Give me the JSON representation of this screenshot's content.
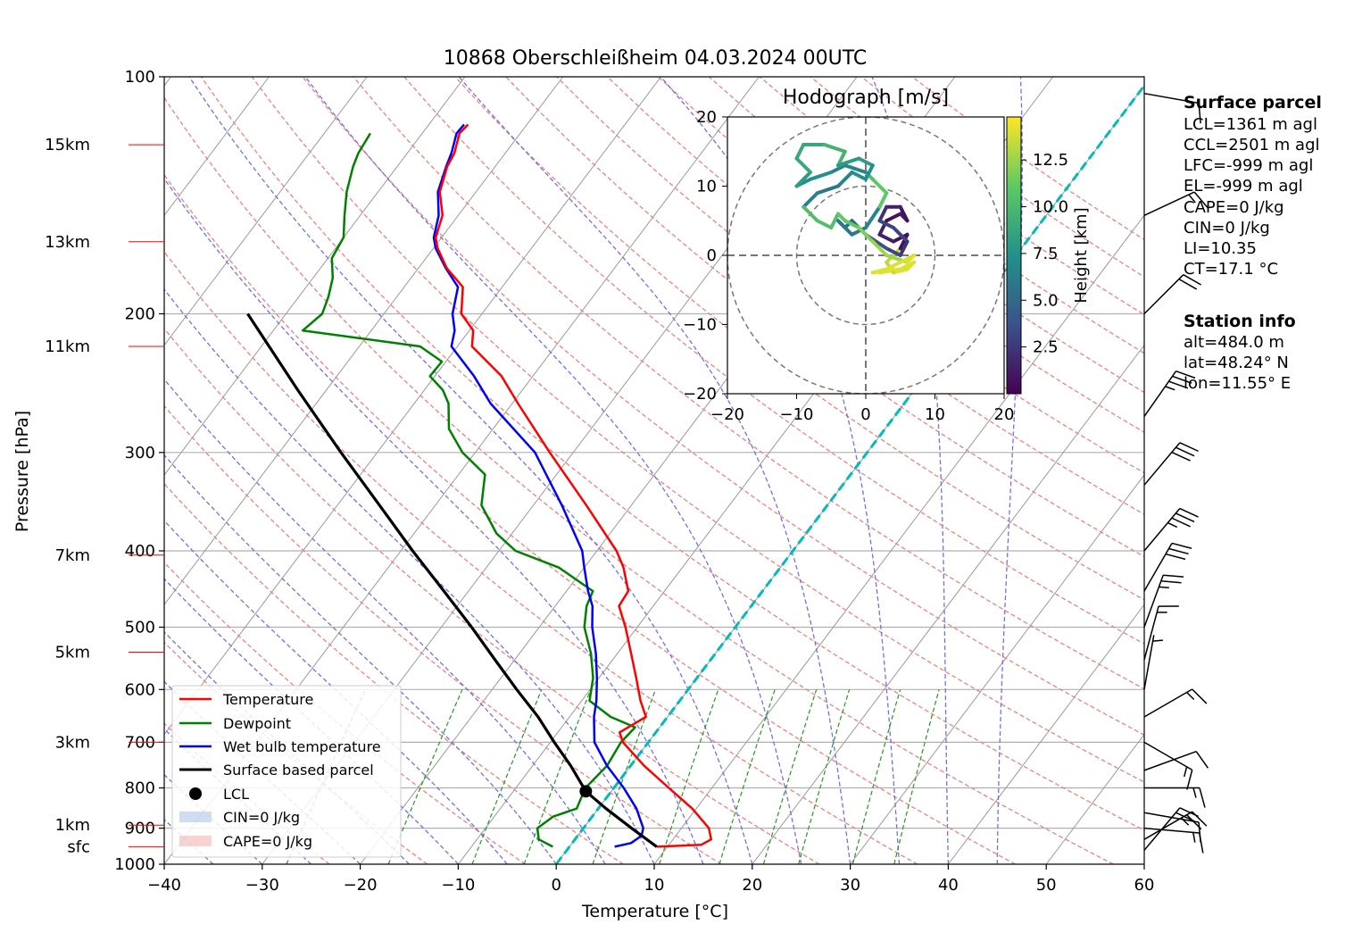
{
  "title": "10868 Oberschleißheim 04.03.2024 00UTC",
  "chart_data": {
    "type": "skew-t",
    "x_axis": {
      "label": "Temperature [°C]",
      "range": [
        -40,
        60
      ],
      "ticks": [
        -40,
        -30,
        -20,
        -10,
        0,
        10,
        20,
        30,
        40,
        50,
        60
      ],
      "tick_labels": [
        "−40",
        "−30",
        "−20",
        "−10",
        "0",
        "10",
        "20",
        "30",
        "40",
        "50",
        "60"
      ]
    },
    "y_axis": {
      "label": "Pressure [hPa]",
      "scale": "log",
      "range": [
        1000,
        100
      ],
      "ticks": [
        1000,
        900,
        800,
        700,
        600,
        500,
        400,
        300,
        200,
        100
      ],
      "tick_labels": [
        "1000",
        "900",
        "800",
        "700",
        "600",
        "500",
        "400",
        "300",
        "200",
        "100"
      ]
    },
    "height_marks": [
      {
        "label": "sfc",
        "pressure": 950
      },
      {
        "label": "1km",
        "pressure": 892
      },
      {
        "label": "3km",
        "pressure": 700
      },
      {
        "label": "5km",
        "pressure": 538
      },
      {
        "label": "7km",
        "pressure": 405
      },
      {
        "label": "11km",
        "pressure": 220
      },
      {
        "label": "13km",
        "pressure": 162
      },
      {
        "label": "15km",
        "pressure": 122
      }
    ],
    "series": [
      {
        "name": "Temperature",
        "color": "#ff0000",
        "points": [
          [
            950,
            8.9
          ],
          [
            945,
            13.3
          ],
          [
            930,
            13.9
          ],
          [
            900,
            12.8
          ],
          [
            850,
            9.6
          ],
          [
            800,
            5.6
          ],
          [
            750,
            1.4
          ],
          [
            700,
            -2.6
          ],
          [
            680,
            -3.7
          ],
          [
            650,
            -2.2
          ],
          [
            620,
            -4.0
          ],
          [
            580,
            -6.2
          ],
          [
            540,
            -8.6
          ],
          [
            500,
            -11.2
          ],
          [
            470,
            -13.5
          ],
          [
            450,
            -13.7
          ],
          [
            420,
            -16.0
          ],
          [
            400,
            -18.0
          ],
          [
            350,
            -24.6
          ],
          [
            300,
            -32.4
          ],
          [
            260,
            -39.4
          ],
          [
            240,
            -43.2
          ],
          [
            220,
            -48.5
          ],
          [
            210,
            -49.6
          ],
          [
            200,
            -52.1
          ],
          [
            185,
            -54.0
          ],
          [
            175,
            -57.1
          ],
          [
            165,
            -59.6
          ],
          [
            160,
            -60.6
          ],
          [
            150,
            -61.6
          ],
          [
            140,
            -63.7
          ],
          [
            130,
            -64.9
          ],
          [
            125,
            -65.2
          ],
          [
            118,
            -66.2
          ],
          [
            115,
            -66.0
          ]
        ]
      },
      {
        "name": "Wet bulb temperature",
        "color": "#0000ff",
        "points": [
          [
            950,
            4.6
          ],
          [
            940,
            6.0
          ],
          [
            920,
            6.5
          ],
          [
            900,
            6.1
          ],
          [
            850,
            3.9
          ],
          [
            800,
            1.0
          ],
          [
            750,
            -2.4
          ],
          [
            700,
            -5.5
          ],
          [
            650,
            -7.5
          ],
          [
            620,
            -8.5
          ],
          [
            580,
            -10.2
          ],
          [
            540,
            -12.2
          ],
          [
            500,
            -14.6
          ],
          [
            470,
            -16.2
          ],
          [
            450,
            -17.8
          ],
          [
            420,
            -20.0
          ],
          [
            400,
            -21.5
          ],
          [
            350,
            -27.1
          ],
          [
            300,
            -33.9
          ],
          [
            260,
            -42.2
          ],
          [
            240,
            -46.0
          ],
          [
            220,
            -50.6
          ],
          [
            210,
            -51.5
          ],
          [
            200,
            -53.0
          ],
          [
            185,
            -54.5
          ],
          [
            175,
            -57.2
          ],
          [
            165,
            -59.8
          ],
          [
            160,
            -60.8
          ],
          [
            150,
            -62.0
          ],
          [
            140,
            -63.9
          ],
          [
            130,
            -65.0
          ],
          [
            125,
            -65.5
          ],
          [
            118,
            -66.5
          ],
          [
            115,
            -66.4
          ]
        ]
      },
      {
        "name": "Dewpoint",
        "color": "#008000",
        "points": [
          [
            950,
            -1.7
          ],
          [
            930,
            -3.7
          ],
          [
            900,
            -4.7
          ],
          [
            870,
            -4.0
          ],
          [
            850,
            -2.2
          ],
          [
            800,
            -2.9
          ],
          [
            750,
            -2.4
          ],
          [
            700,
            -2.8
          ],
          [
            670,
            -2.5
          ],
          [
            650,
            -5.8
          ],
          [
            620,
            -9.2
          ],
          [
            580,
            -10.6
          ],
          [
            540,
            -12.7
          ],
          [
            500,
            -15.4
          ],
          [
            470,
            -16.8
          ],
          [
            450,
            -17.3
          ],
          [
            420,
            -22.6
          ],
          [
            400,
            -28.3
          ],
          [
            380,
            -31.6
          ],
          [
            350,
            -35.3
          ],
          [
            320,
            -37.3
          ],
          [
            300,
            -41.3
          ],
          [
            280,
            -44.5
          ],
          [
            260,
            -46.5
          ],
          [
            250,
            -48.1
          ],
          [
            240,
            -50.5
          ],
          [
            230,
            -50.4
          ],
          [
            220,
            -53.8
          ],
          [
            210,
            -67.0
          ],
          [
            200,
            -66.3
          ],
          [
            190,
            -67.0
          ],
          [
            180,
            -68.0
          ],
          [
            170,
            -69.6
          ],
          [
            160,
            -70.0
          ],
          [
            150,
            -71.6
          ],
          [
            140,
            -73.2
          ],
          [
            130,
            -74.5
          ],
          [
            125,
            -75.0
          ],
          [
            118,
            -75.3
          ]
        ]
      },
      {
        "name": "Surface based parcel",
        "color": "#000000",
        "points": [
          [
            950,
            8.9
          ],
          [
            900,
            4.9
          ],
          [
            850,
            0.8
          ],
          [
            808,
            -2.6
          ],
          [
            750,
            -6.1
          ],
          [
            700,
            -9.6
          ],
          [
            650,
            -13.2
          ],
          [
            600,
            -17.5
          ],
          [
            550,
            -22.0
          ],
          [
            500,
            -26.9
          ],
          [
            450,
            -32.5
          ],
          [
            400,
            -38.8
          ],
          [
            350,
            -45.7
          ],
          [
            300,
            -53.7
          ],
          [
            250,
            -62.9
          ],
          [
            200,
            -73.9
          ]
        ]
      }
    ],
    "lcl": {
      "pressure": 808,
      "temperature": -2.6
    },
    "legend": [
      "Temperature",
      "Dewpoint",
      "Wet bulb temperature",
      "Surface based parcel",
      "LCL",
      "CIN=0 J/kg",
      "CAPE=0 J/kg"
    ],
    "legend_position": "lower-left",
    "hodograph": {
      "title": "Hodograph [m/s]",
      "range": [
        -20,
        20
      ],
      "ticks": [
        -20,
        -10,
        0,
        10,
        20
      ],
      "tick_labels": [
        "−20",
        "−10",
        "0",
        "10",
        "20"
      ],
      "rings": [
        10,
        20
      ],
      "colorbar_label": "Height [km]",
      "colorbar_ticks": [
        "2.5",
        "5.0",
        "7.5",
        "10.0",
        "12.5"
      ],
      "colormap": "viridis",
      "uv": [
        [
          2,
          -2.5
        ],
        [
          5,
          -2
        ],
        [
          7,
          -1
        ],
        [
          6,
          -2
        ],
        [
          4,
          -2.5
        ],
        [
          3,
          -1
        ],
        [
          5,
          1
        ],
        [
          6,
          3
        ],
        [
          4,
          2
        ],
        [
          2,
          3
        ],
        [
          3,
          5
        ],
        [
          5,
          6
        ],
        [
          6,
          5
        ],
        [
          5,
          7
        ],
        [
          3,
          7
        ],
        [
          2,
          5
        ],
        [
          4,
          4
        ],
        [
          6,
          2
        ],
        [
          5,
          0
        ],
        [
          3,
          1
        ],
        [
          0,
          3
        ],
        [
          -2,
          5
        ],
        [
          -3,
          4
        ],
        [
          -4,
          5
        ],
        [
          -2,
          3
        ],
        [
          0,
          4
        ],
        [
          2,
          7
        ],
        [
          3,
          9
        ],
        [
          1,
          11
        ],
        [
          0,
          12
        ],
        [
          -3,
          13
        ],
        [
          -5,
          12
        ],
        [
          -8,
          11
        ],
        [
          -10,
          10
        ],
        [
          -8,
          12
        ],
        [
          -10,
          14
        ],
        [
          -9,
          16
        ],
        [
          -6,
          16
        ],
        [
          -3,
          15
        ],
        [
          -4,
          13
        ],
        [
          -1,
          14
        ],
        [
          1,
          13
        ],
        [
          0,
          11
        ],
        [
          -2,
          12
        ],
        [
          -4,
          10
        ],
        [
          -7,
          9
        ],
        [
          -9,
          7
        ],
        [
          -7,
          5
        ],
        [
          -5,
          4
        ],
        [
          -4,
          6
        ],
        [
          -3,
          5
        ],
        [
          -1,
          4
        ],
        [
          1,
          2
        ],
        [
          3,
          0
        ],
        [
          6,
          -1
        ],
        [
          7,
          0
        ],
        [
          5,
          -1
        ],
        [
          3,
          -2
        ],
        [
          1,
          -2.5
        ],
        [
          4,
          -2
        ]
      ]
    },
    "parcel_info_title": "Surface parcel",
    "parcel_info": [
      "LCL=1361 m agl",
      "CCL=2501 m agl",
      "LFC=-999 m agl",
      "EL=-999 m agl",
      "CAPE=0 J/kg",
      "CIN=0 J/kg",
      "LI=10.35",
      "CT=17.1 °C"
    ],
    "station_info_title": "Station info",
    "station_info": [
      "alt=484.0 m",
      "lat=48.24° N",
      "lon=11.55° E"
    ],
    "wind_barbs": [
      {
        "pressure": 960,
        "speed_kt": 20,
        "dir": 220
      },
      {
        "pressure": 930,
        "speed_kt": 25,
        "dir": 240
      },
      {
        "pressure": 900,
        "speed_kt": 15,
        "dir": 275
      },
      {
        "pressure": 860,
        "speed_kt": 10,
        "dir": 280
      },
      {
        "pressure": 800,
        "speed_kt": 15,
        "dir": 270
      },
      {
        "pressure": 760,
        "speed_kt": 10,
        "dir": 250
      },
      {
        "pressure": 700,
        "speed_kt": 15,
        "dir": 300
      },
      {
        "pressure": 650,
        "speed_kt": 15,
        "dir": 240
      },
      {
        "pressure": 600,
        "speed_kt": 5,
        "dir": 190
      },
      {
        "pressure": 550,
        "speed_kt": 15,
        "dir": 195
      },
      {
        "pressure": 500,
        "speed_kt": 25,
        "dir": 200
      },
      {
        "pressure": 450,
        "speed_kt": 30,
        "dir": 210
      },
      {
        "pressure": 400,
        "speed_kt": 35,
        "dir": 220
      },
      {
        "pressure": 330,
        "speed_kt": 30,
        "dir": 220
      },
      {
        "pressure": 270,
        "speed_kt": 35,
        "dir": 215
      },
      {
        "pressure": 200,
        "speed_kt": 20,
        "dir": 225
      },
      {
        "pressure": 150,
        "speed_kt": 15,
        "dir": 245
      },
      {
        "pressure": 105,
        "speed_kt": 10,
        "dir": 280
      }
    ]
  }
}
